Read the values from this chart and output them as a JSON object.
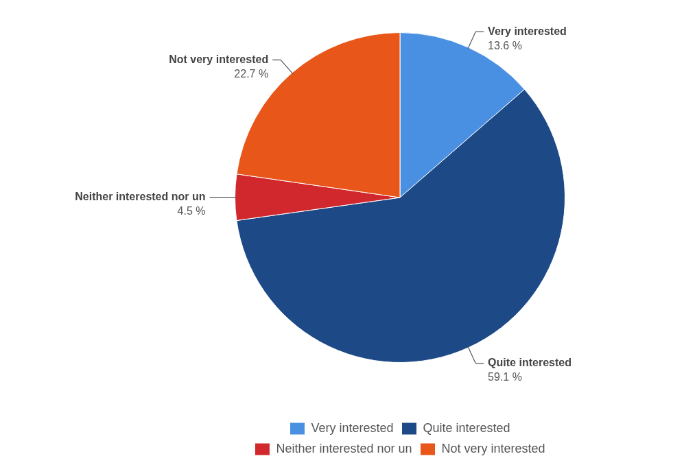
{
  "chart_data": {
    "type": "pie",
    "categories": [
      "Very interested",
      "Quite interested",
      "Neither interested nor un",
      "Not very interested"
    ],
    "values": [
      13.6,
      59.1,
      4.5,
      22.7
    ],
    "value_labels": [
      "13.6 %",
      "59.1 %",
      "4.5 %",
      "22.7 %"
    ],
    "colors": [
      "#4a90e2",
      "#1d4a86",
      "#d0282c",
      "#e8561a"
    ],
    "legend": "bottom"
  }
}
